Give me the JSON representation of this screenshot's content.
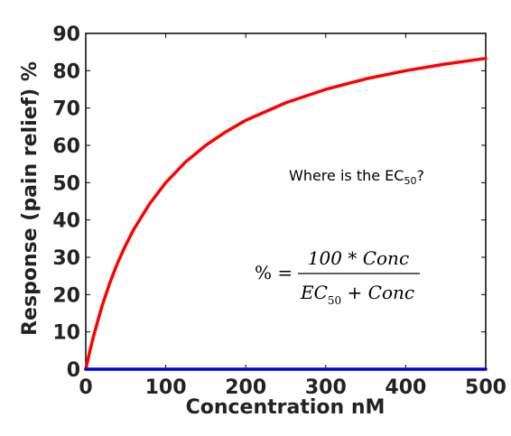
{
  "chart_data": {
    "type": "line",
    "xlabel": "Concentration nM",
    "ylabel": "Response (pain relief) %",
    "xlim": [
      0,
      500
    ],
    "ylim": [
      0,
      90
    ],
    "x_ticks": [
      "0",
      "100",
      "200",
      "300",
      "400",
      "500"
    ],
    "y_ticks": [
      "0",
      "10",
      "20",
      "30",
      "40",
      "50",
      "60",
      "70",
      "80",
      "90"
    ],
    "grid": false,
    "series": [
      {
        "color": "#ff0000",
        "x": [
          0,
          5,
          10,
          20,
          30,
          40,
          50,
          60,
          80,
          100,
          125,
          150,
          175,
          200,
          250,
          300,
          350,
          400,
          450,
          500
        ],
        "y": [
          0,
          4.8,
          9.1,
          16.7,
          23.1,
          28.6,
          33.3,
          37.5,
          44.4,
          50.0,
          55.6,
          60.0,
          63.6,
          66.7,
          71.4,
          75.0,
          77.8,
          80.0,
          81.8,
          83.3
        ]
      },
      {
        "color": "#0000dd",
        "x": [
          0,
          500
        ],
        "y": [
          0,
          0
        ]
      }
    ],
    "annotations": {
      "question": "Where is the EC",
      "question_sub": "50",
      "question_end": "?",
      "formula_lhs": "% =",
      "formula_numerator": "100 * Conc",
      "formula_den_a": "EC",
      "formula_den_sub": "50",
      "formula_den_b": " + Conc"
    }
  }
}
